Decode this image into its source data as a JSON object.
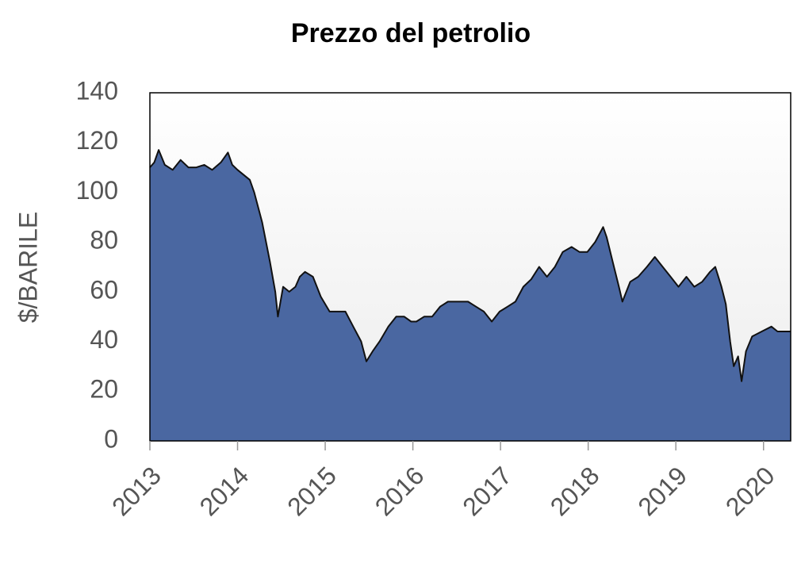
{
  "chart_data": {
    "type": "area",
    "title": "Prezzo del petrolio",
    "y_label": "$/BARILE",
    "x": [
      2013.0,
      2013.05,
      2013.1,
      2013.17,
      2013.26,
      2013.35,
      2013.44,
      2013.53,
      2013.62,
      2013.71,
      2013.81,
      2013.89,
      2013.94,
      2014.0,
      2014.14,
      2014.19,
      2014.28,
      2014.37,
      2014.43,
      2014.46,
      2014.52,
      2014.59,
      2014.66,
      2014.71,
      2014.77,
      2014.86,
      2014.95,
      2015.05,
      2015.14,
      2015.23,
      2015.32,
      2015.41,
      2015.47,
      2015.54,
      2015.62,
      2015.72,
      2015.81,
      2015.9,
      2015.98,
      2016.04,
      2016.13,
      2016.22,
      2016.31,
      2016.4,
      2016.54,
      2016.63,
      2016.72,
      2016.81,
      2016.9,
      2016.99,
      2017.08,
      2017.17,
      2017.26,
      2017.35,
      2017.44,
      2017.53,
      2017.62,
      2017.71,
      2017.81,
      2017.9,
      2017.99,
      2018.08,
      2018.17,
      2018.21,
      2018.28,
      2018.35,
      2018.39,
      2018.48,
      2018.57,
      2018.67,
      2018.76,
      2018.85,
      2018.94,
      2019.03,
      2019.12,
      2019.21,
      2019.3,
      2019.39,
      2019.45,
      2019.52,
      2019.57,
      2019.62,
      2019.66,
      2019.71,
      2019.75,
      2019.8,
      2019.87,
      2019.98,
      2020.09,
      2020.16,
      2020.25,
      2020.31
    ],
    "values": [
      110,
      112,
      117,
      111,
      109,
      113,
      110,
      110,
      111,
      109,
      112,
      116,
      111,
      109,
      105,
      100,
      88,
      72,
      60,
      50,
      62,
      60,
      62,
      66,
      68,
      66,
      58,
      52,
      52,
      52,
      46,
      40,
      32,
      36,
      40,
      46,
      50,
      50,
      48,
      48,
      50,
      50,
      54,
      56,
      56,
      56,
      54,
      52,
      48,
      52,
      54,
      56,
      62,
      65,
      70,
      66,
      70,
      76,
      78,
      76,
      76,
      80,
      86,
      82,
      72,
      62,
      56,
      64,
      66,
      70,
      74,
      70,
      66,
      62,
      66,
      62,
      64,
      68,
      70,
      62,
      55,
      40,
      30,
      34,
      24,
      36,
      42,
      44,
      46,
      44,
      44,
      44
    ],
    "color": "#4a67a1",
    "xlim": [
      2013,
      2020.31
    ],
    "xticks": [
      2013,
      2014,
      2015,
      2016,
      2017,
      2018,
      2019,
      2020
    ],
    "ylim": [
      0,
      140
    ],
    "yticks": [
      0,
      20,
      40,
      60,
      80,
      100,
      120,
      140
    ]
  }
}
